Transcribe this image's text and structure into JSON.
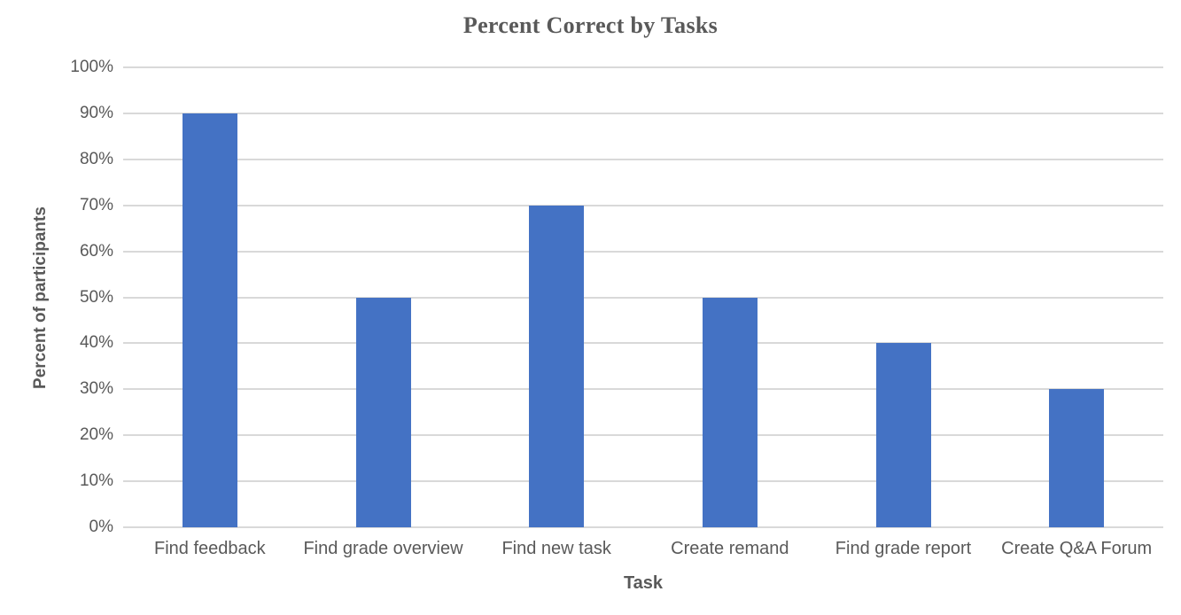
{
  "chart_data": {
    "type": "bar",
    "title": "Percent Correct by Tasks",
    "xlabel": "Task",
    "ylabel": "Percent of participants",
    "categories": [
      "Find feedback",
      "Find grade overview",
      "Find new task",
      "Create remand",
      "Find grade report",
      "Create Q&A Forum"
    ],
    "values": [
      90,
      50,
      70,
      50,
      40,
      30
    ],
    "ylim": [
      0,
      100
    ],
    "ytick_step": 10,
    "ytick_suffix": "%",
    "grid": true,
    "legend": "none",
    "colors": {
      "bar": "#4472C4",
      "gridline": "#D9D9D9",
      "tick_label": "#595959",
      "axis_title": "#595959",
      "chart_title": "#595959"
    }
  }
}
